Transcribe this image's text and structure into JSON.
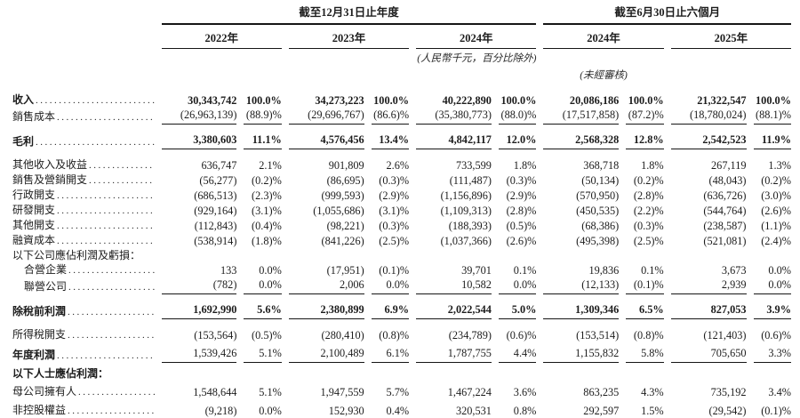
{
  "document": {
    "period_groups": [
      "截至12月31日止年度",
      "截至6月30日止六個月"
    ],
    "year_headers": [
      "2022年",
      "2023年",
      "2024年",
      "2024年",
      "2025年"
    ],
    "notes": {
      "currency": "(人民幣千元，百分比除外)",
      "unaudited": "(未經審核)"
    },
    "rows": [
      {
        "label": "收入",
        "bold_label": true,
        "bold_values": true,
        "dots": true,
        "first": true,
        "values": [
          "30,343,742",
          "100.0%",
          "34,273,223",
          "100.0%",
          "40,222,890",
          "100.0%",
          "20,086,186",
          "100.0%",
          "21,322,547",
          "100.0%"
        ]
      },
      {
        "label": "銷售成本",
        "dots": true,
        "underline": true,
        "values": [
          "(26,963,139)",
          "(88.9)%",
          "(29,696,767)",
          "(86.6)%",
          "(35,380,773)",
          "(88.0)%",
          "(17,517,858)",
          "(87.2)%",
          "(18,780,024)",
          "(88.1)%"
        ]
      },
      {
        "label": "毛利",
        "bold_label": true,
        "bold_values": true,
        "dots": true,
        "underline": true,
        "gap": "md",
        "values": [
          "3,380,603",
          "11.1%",
          "4,576,456",
          "13.4%",
          "4,842,117",
          "12.0%",
          "2,568,328",
          "12.8%",
          "2,542,523",
          "11.9%"
        ]
      },
      {
        "label": "其他收入及收益",
        "dots": true,
        "gap": "md",
        "values": [
          "636,747",
          "2.1%",
          "901,809",
          "2.6%",
          "733,599",
          "1.8%",
          "368,718",
          "1.8%",
          "267,119",
          "1.3%"
        ]
      },
      {
        "label": "銷售及營銷開支",
        "dots": true,
        "values": [
          "(56,277)",
          "(0.2)%",
          "(86,695)",
          "(0.3)%",
          "(111,487)",
          "(0.3)%",
          "(50,134)",
          "(0.2)%",
          "(48,043)",
          "(0.2)%"
        ]
      },
      {
        "label": "行政開支",
        "dots": true,
        "values": [
          "(686,513)",
          "(2.3)%",
          "(999,593)",
          "(2.9)%",
          "(1,156,896)",
          "(2.9)%",
          "(570,950)",
          "(2.8)%",
          "(636,726)",
          "(3.0)%"
        ]
      },
      {
        "label": "研發開支",
        "dots": true,
        "values": [
          "(929,164)",
          "(3.1)%",
          "(1,055,686)",
          "(3.1)%",
          "(1,109,313)",
          "(2.8)%",
          "(450,535)",
          "(2.2)%",
          "(544,764)",
          "(2.6)%"
        ]
      },
      {
        "label": "其他開支",
        "dots": true,
        "values": [
          "(112,843)",
          "(0.4)%",
          "(98,221)",
          "(0.3)%",
          "(188,393)",
          "(0.5)%",
          "(68,386)",
          "(0.3)%",
          "(238,587)",
          "(1.1)%"
        ]
      },
      {
        "label": "融資成本",
        "dots": true,
        "values": [
          "(538,914)",
          "(1.8)%",
          "(841,226)",
          "(2.5)%",
          "(1,037,366)",
          "(2.6)%",
          "(495,398)",
          "(2.5)%",
          "(521,081)",
          "(2.4)%"
        ]
      },
      {
        "label": "以下公司應佔利潤及虧損：",
        "values": [
          "",
          "",
          "",
          "",
          "",
          "",
          "",
          "",
          "",
          ""
        ]
      },
      {
        "label": "合營企業",
        "indent": true,
        "dots": true,
        "values": [
          "133",
          "0.0%",
          "(17,951)",
          "(0.1)%",
          "39,701",
          "0.1%",
          "19,836",
          "0.1%",
          "3,673",
          "0.0%"
        ]
      },
      {
        "label": "聯營公司",
        "indent": true,
        "dots": true,
        "underline": true,
        "values": [
          "(782)",
          "0.0%",
          "2,006",
          "0.0%",
          "10,582",
          "0.0%",
          "(12,133)",
          "(0.1)%",
          "2,939",
          "0.0%"
        ]
      },
      {
        "label": "除稅前利潤",
        "bold_label": true,
        "bold_values": true,
        "dots": true,
        "underline": true,
        "gap": "md",
        "values": [
          "1,692,990",
          "5.6%",
          "2,380,899",
          "6.9%",
          "2,022,544",
          "5.0%",
          "1,309,346",
          "6.5%",
          "827,053",
          "3.9%"
        ]
      },
      {
        "label": "所得稅開支",
        "dots": true,
        "gap": "md",
        "values": [
          "(153,564)",
          "(0.5)%",
          "(280,410)",
          "(0.8)%",
          "(234,789)",
          "(0.6)%",
          "(153,514)",
          "(0.8)%",
          "(121,403)",
          "(0.6)%"
        ]
      },
      {
        "label": "年度利潤",
        "bold_label": true,
        "dots": true,
        "underline": true,
        "gap": "sm",
        "values": [
          "1,539,426",
          "5.1%",
          "2,100,489",
          "6.1%",
          "1,787,755",
          "4.4%",
          "1,155,832",
          "5.8%",
          "705,650",
          "3.3%"
        ]
      },
      {
        "label": "以下人士應佔利潤：",
        "bold_label": true,
        "gap": "sm",
        "values": [
          "",
          "",
          "",
          "",
          "",
          "",
          "",
          "",
          "",
          ""
        ]
      },
      {
        "label": "母公司擁有人",
        "dots": true,
        "gap": "sm",
        "values": [
          "1,548,644",
          "5.1%",
          "1,947,559",
          "5.7%",
          "1,467,224",
          "3.6%",
          "863,235",
          "4.3%",
          "735,192",
          "3.4%"
        ]
      },
      {
        "label": "非控股權益",
        "dots": true,
        "gap": "sm",
        "values": [
          "(9,218)",
          "0.0%",
          "152,930",
          "0.4%",
          "320,531",
          "0.8%",
          "292,597",
          "1.5%",
          "(29,542)",
          "(0.1)%"
        ]
      }
    ]
  }
}
